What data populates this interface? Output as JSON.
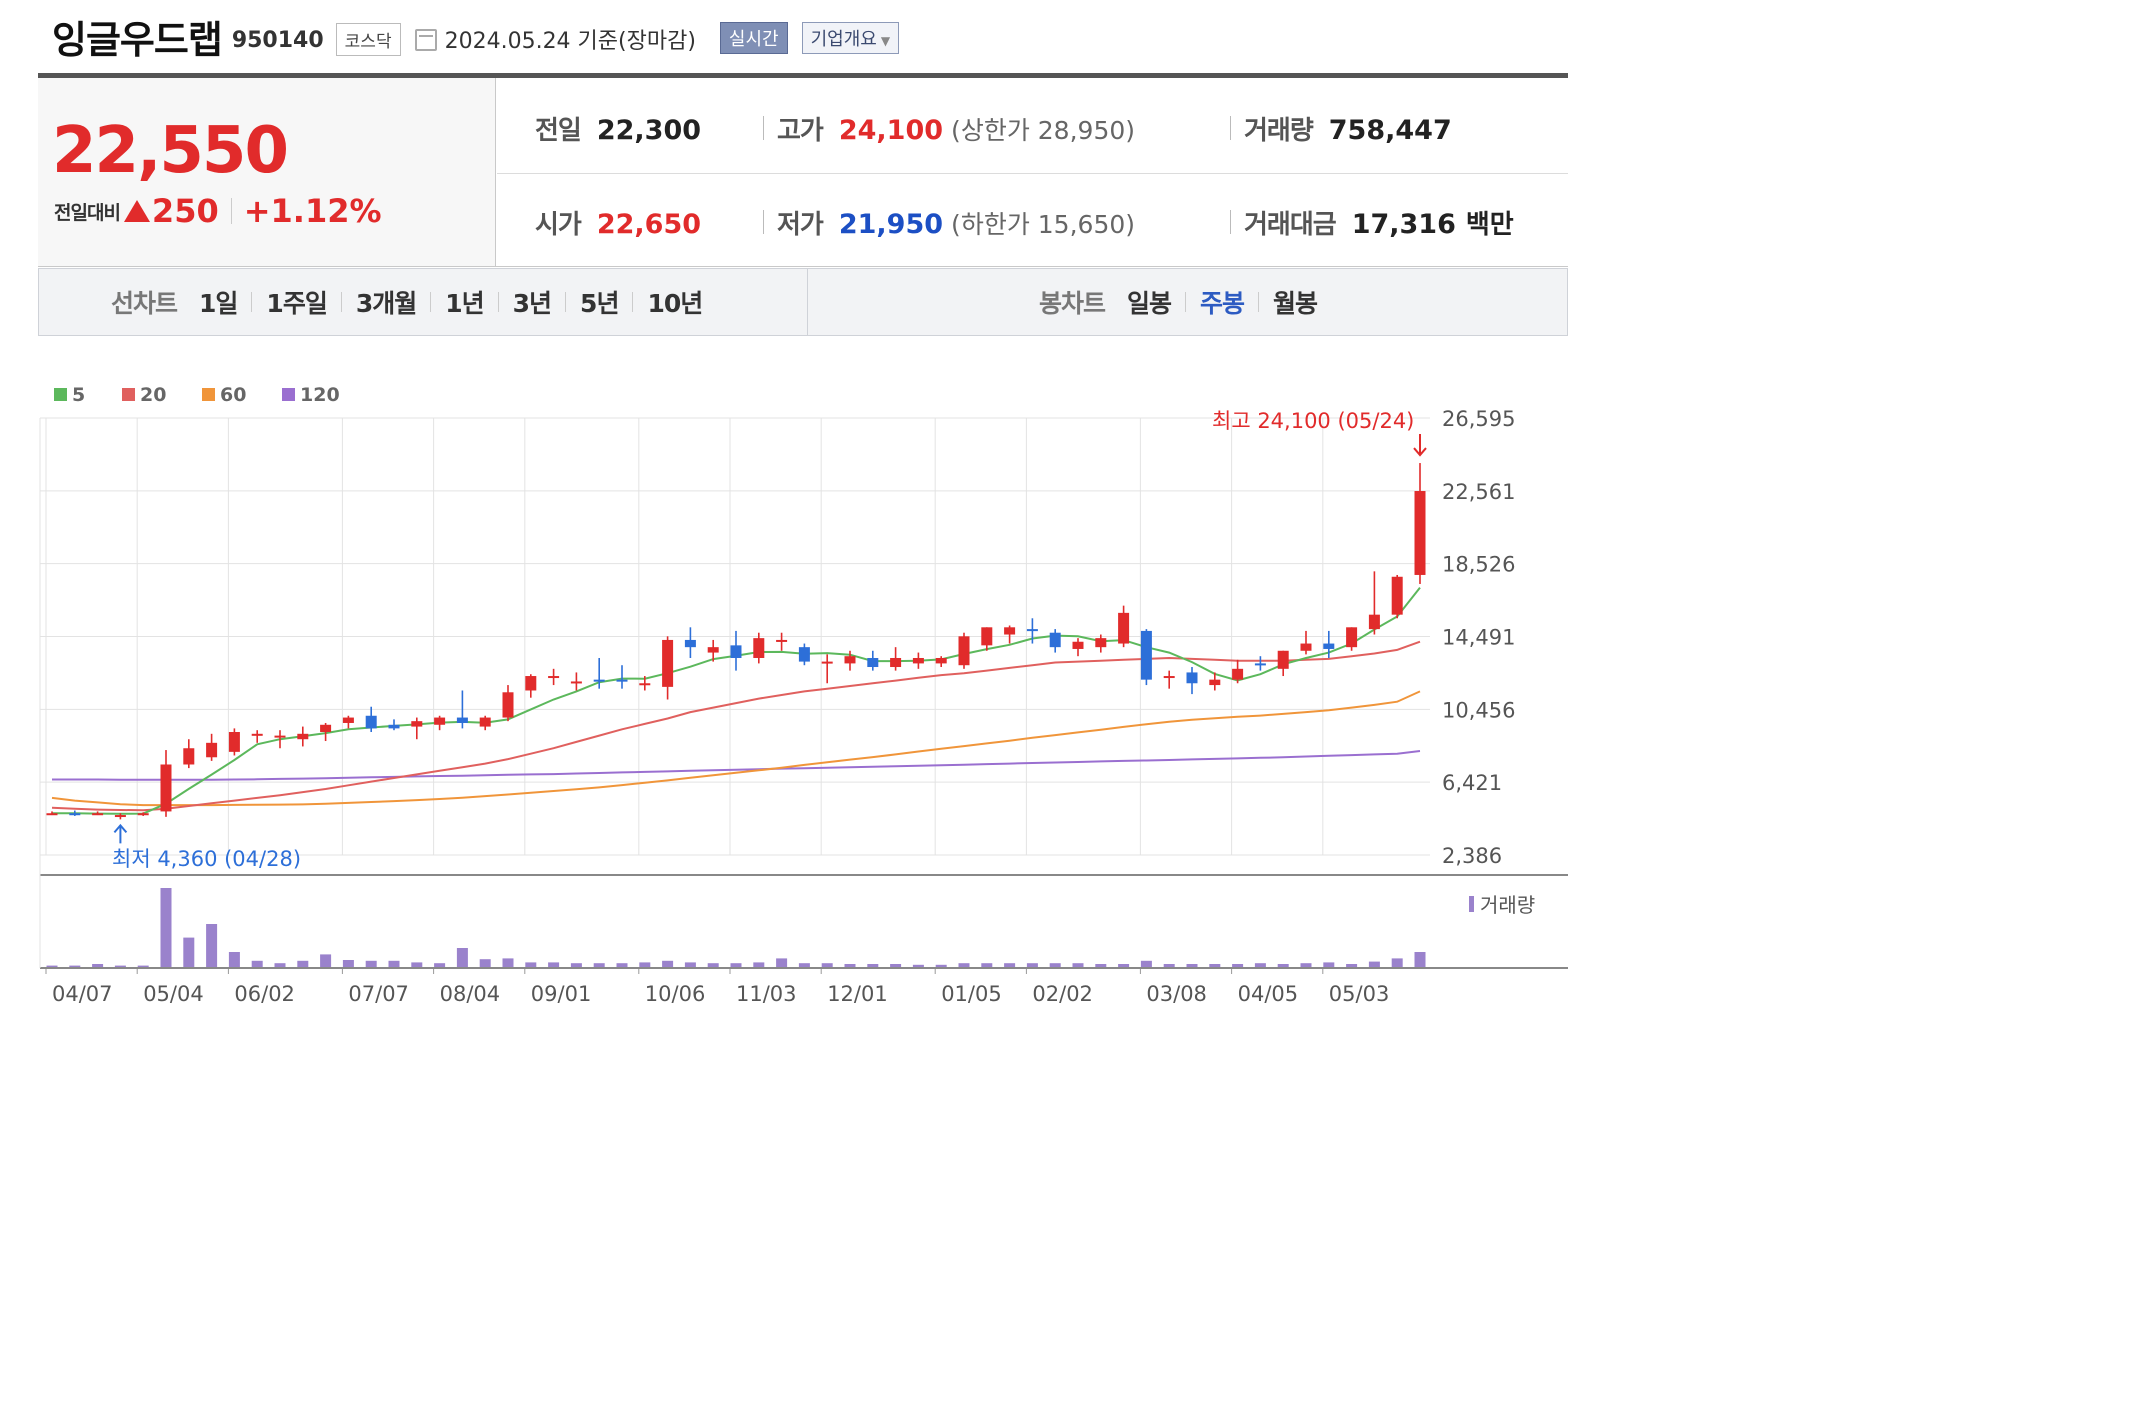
{
  "header": {
    "name": "잉글우드랩",
    "code": "950140",
    "market": "코스닥",
    "date": "2024.05.24 기준(장마감)",
    "realtime_button": "실시간",
    "corp_button": "기업개요"
  },
  "quote": {
    "price": "22,550",
    "change_label": "전일대비",
    "change": "250",
    "change_pct": "+1.12%",
    "prev_close": {
      "label": "전일",
      "value": "22,300"
    },
    "open": {
      "label": "시가",
      "value": "22,650"
    },
    "high": {
      "label": "고가",
      "value": "24,100",
      "limit_label": "상한가",
      "limit_value": "28,950"
    },
    "low": {
      "label": "저가",
      "value": "21,950",
      "limit_label": "하한가",
      "limit_value": "15,650"
    },
    "volume": {
      "label": "거래량",
      "value": "758,447"
    },
    "turnover": {
      "label": "거래대금",
      "value": "17,316",
      "unit": "백만"
    }
  },
  "tabs": {
    "line_title": "선차트",
    "line_tabs": [
      "1일",
      "1주일",
      "3개월",
      "1년",
      "3년",
      "5년",
      "10년"
    ],
    "candle_title": "봉차트",
    "candle_tabs": [
      "일봉",
      "주봉",
      "월봉"
    ],
    "candle_active": "주봉"
  },
  "colors": {
    "up": "#e12b2b",
    "down": "#2d6fd8",
    "ma5": "#5cb85c",
    "ma20": "#e0605e",
    "ma60": "#f0953a",
    "ma120": "#9a6fd0",
    "volume": "#9a82cc",
    "grid": "#e3e3e3"
  },
  "chart_data": {
    "type": "candlestick",
    "period": "weekly",
    "y_ticks": [
      "26,595",
      "22,561",
      "18,526",
      "14,491",
      "10,456",
      "6,421",
      "2,386"
    ],
    "ylim": [
      2386,
      26595
    ],
    "x_ticks": [
      "04/07",
      "05/04",
      "06/02",
      "07/07",
      "08/04",
      "09/01",
      "10/06",
      "11/03",
      "12/01",
      "01/05",
      "02/02",
      "03/08",
      "04/05",
      "05/03"
    ],
    "legend": [
      {
        "name": "5",
        "color": "#5cb85c"
      },
      {
        "name": "20",
        "color": "#e0605e"
      },
      {
        "name": "60",
        "color": "#f0953a"
      },
      {
        "name": "120",
        "color": "#9a6fd0"
      }
    ],
    "volume_label": "거래량",
    "max_annotation": "최고 24,100 (05/24)",
    "min_annotation": "최저 4,360 (04/28)",
    "candles": [
      {
        "o": 4700,
        "h": 4800,
        "l": 4600,
        "c": 4700
      },
      {
        "o": 4700,
        "h": 4850,
        "l": 4550,
        "c": 4650
      },
      {
        "o": 4700,
        "h": 4800,
        "l": 4600,
        "c": 4700
      },
      {
        "o": 4600,
        "h": 4700,
        "l": 4360,
        "c": 4600
      },
      {
        "o": 4650,
        "h": 4750,
        "l": 4550,
        "c": 4700
      },
      {
        "o": 4800,
        "h": 8200,
        "l": 4500,
        "c": 7400
      },
      {
        "o": 7400,
        "h": 8800,
        "l": 7200,
        "c": 8300
      },
      {
        "o": 7800,
        "h": 9100,
        "l": 7600,
        "c": 8600
      },
      {
        "o": 8100,
        "h": 9400,
        "l": 7900,
        "c": 9200
      },
      {
        "o": 9100,
        "h": 9300,
        "l": 8600,
        "c": 9100
      },
      {
        "o": 9000,
        "h": 9300,
        "l": 8300,
        "c": 9000
      },
      {
        "o": 8800,
        "h": 9500,
        "l": 8400,
        "c": 9100
      },
      {
        "o": 9200,
        "h": 9700,
        "l": 8700,
        "c": 9600
      },
      {
        "o": 9700,
        "h": 10100,
        "l": 9400,
        "c": 10000
      },
      {
        "o": 10100,
        "h": 10600,
        "l": 9200,
        "c": 9400
      },
      {
        "o": 9600,
        "h": 9900,
        "l": 9300,
        "c": 9400
      },
      {
        "o": 9500,
        "h": 10000,
        "l": 8800,
        "c": 9800
      },
      {
        "o": 9600,
        "h": 10100,
        "l": 9300,
        "c": 10000
      },
      {
        "o": 10000,
        "h": 11500,
        "l": 9400,
        "c": 9700
      },
      {
        "o": 9500,
        "h": 10100,
        "l": 9300,
        "c": 10000
      },
      {
        "o": 10000,
        "h": 11800,
        "l": 9800,
        "c": 11400
      },
      {
        "o": 11500,
        "h": 12400,
        "l": 11100,
        "c": 12300
      },
      {
        "o": 12200,
        "h": 12700,
        "l": 11800,
        "c": 12300
      },
      {
        "o": 12000,
        "h": 12500,
        "l": 11500,
        "c": 12000
      },
      {
        "o": 12100,
        "h": 13300,
        "l": 11600,
        "c": 12000
      },
      {
        "o": 12100,
        "h": 12900,
        "l": 11600,
        "c": 12000
      },
      {
        "o": 11900,
        "h": 12300,
        "l": 11500,
        "c": 11900
      },
      {
        "o": 11700,
        "h": 14500,
        "l": 11000,
        "c": 14300
      },
      {
        "o": 14300,
        "h": 15000,
        "l": 13300,
        "c": 13900
      },
      {
        "o": 13600,
        "h": 14300,
        "l": 13100,
        "c": 13900
      },
      {
        "o": 14000,
        "h": 14800,
        "l": 12600,
        "c": 13300
      },
      {
        "o": 13300,
        "h": 14700,
        "l": 13000,
        "c": 14400
      },
      {
        "o": 14300,
        "h": 14700,
        "l": 13700,
        "c": 14300
      },
      {
        "o": 13900,
        "h": 14100,
        "l": 12900,
        "c": 13100
      },
      {
        "o": 13100,
        "h": 13500,
        "l": 11900,
        "c": 13100
      },
      {
        "o": 13000,
        "h": 13700,
        "l": 12600,
        "c": 13400
      },
      {
        "o": 13300,
        "h": 13700,
        "l": 12600,
        "c": 12800
      },
      {
        "o": 12800,
        "h": 13900,
        "l": 12600,
        "c": 13300
      },
      {
        "o": 13000,
        "h": 13600,
        "l": 12700,
        "c": 13300
      },
      {
        "o": 13000,
        "h": 13400,
        "l": 12800,
        "c": 13300
      },
      {
        "o": 12900,
        "h": 14700,
        "l": 12700,
        "c": 14500
      },
      {
        "o": 14000,
        "h": 15000,
        "l": 13700,
        "c": 15000
      },
      {
        "o": 14600,
        "h": 15100,
        "l": 14100,
        "c": 15000
      },
      {
        "o": 14900,
        "h": 15500,
        "l": 14100,
        "c": 14800
      },
      {
        "o": 14700,
        "h": 14900,
        "l": 13600,
        "c": 13900
      },
      {
        "o": 13800,
        "h": 14400,
        "l": 13400,
        "c": 14200
      },
      {
        "o": 13900,
        "h": 14600,
        "l": 13600,
        "c": 14400
      },
      {
        "o": 14100,
        "h": 16200,
        "l": 13900,
        "c": 15800
      },
      {
        "o": 14800,
        "h": 14900,
        "l": 11800,
        "c": 12100
      },
      {
        "o": 12200,
        "h": 12600,
        "l": 11600,
        "c": 12300
      },
      {
        "o": 12500,
        "h": 12800,
        "l": 11300,
        "c": 11900
      },
      {
        "o": 11800,
        "h": 12500,
        "l": 11500,
        "c": 12100
      },
      {
        "o": 12100,
        "h": 13200,
        "l": 11900,
        "c": 12700
      },
      {
        "o": 13000,
        "h": 13400,
        "l": 12600,
        "c": 12900
      },
      {
        "o": 12700,
        "h": 13700,
        "l": 12300,
        "c": 13700
      },
      {
        "o": 13700,
        "h": 14800,
        "l": 13500,
        "c": 14100
      },
      {
        "o": 14100,
        "h": 14800,
        "l": 13300,
        "c": 13800
      },
      {
        "o": 13900,
        "h": 15000,
        "l": 13700,
        "c": 15000
      },
      {
        "o": 14900,
        "h": 18100,
        "l": 14600,
        "c": 15700
      },
      {
        "o": 15700,
        "h": 17900,
        "l": 15500,
        "c": 17800
      },
      {
        "o": 17900,
        "h": 24100,
        "l": 17400,
        "c": 22550
      }
    ],
    "ma5": [
      4700,
      4700,
      4680,
      4670,
      4680,
      5230,
      6050,
      6840,
      7650,
      8520,
      8800,
      8960,
      9140,
      9350,
      9450,
      9540,
      9620,
      9720,
      9760,
      9710,
      9900,
      10450,
      11000,
      11450,
      11960,
      12160,
      12150,
      12460,
      12820,
      13240,
      13420,
      13630,
      13640,
      13540,
      13570,
      13480,
      13130,
      13130,
      13150,
      13220,
      13520,
      13790,
      14030,
      14380,
      14540,
      14500,
      14230,
      14290,
      13900,
      13600,
      13070,
      12420,
      12060,
      12400,
      12950,
      13300,
      13600,
      14100,
      14880,
      15600,
      17200
    ],
    "ma20": [
      5000,
      4950,
      4900,
      4880,
      4870,
      4950,
      5100,
      5250,
      5400,
      5550,
      5700,
      5870,
      6040,
      6250,
      6450,
      6650,
      6850,
      7050,
      7250,
      7450,
      7700,
      8000,
      8300,
      8650,
      9000,
      9350,
      9650,
      9950,
      10300,
      10550,
      10800,
      11050,
      11250,
      11450,
      11600,
      11750,
      11900,
      12050,
      12200,
      12350,
      12450,
      12600,
      12750,
      12900,
      13050,
      13100,
      13150,
      13200,
      13250,
      13300,
      13250,
      13200,
      13150,
      13150,
      13150,
      13200,
      13250,
      13400,
      13550,
      13750,
      14200
    ],
    "ma60": [
      5550,
      5400,
      5300,
      5200,
      5150,
      5150,
      5150,
      5150,
      5160,
      5170,
      5180,
      5190,
      5230,
      5270,
      5320,
      5370,
      5430,
      5490,
      5560,
      5650,
      5740,
      5830,
      5930,
      6030,
      6130,
      6260,
      6390,
      6520,
      6660,
      6800,
      6940,
      7080,
      7220,
      7380,
      7520,
      7670,
      7810,
      7960,
      8120,
      8270,
      8420,
      8570,
      8720,
      8880,
      9030,
      9180,
      9330,
      9480,
      9630,
      9770,
      9880,
      9960,
      10040,
      10110,
      10200,
      10300,
      10410,
      10550,
      10700,
      10880,
      11450
    ],
    "ma120": [
      6570,
      6570,
      6570,
      6560,
      6560,
      6550,
      6550,
      6560,
      6570,
      6580,
      6600,
      6620,
      6640,
      6660,
      6690,
      6710,
      6740,
      6760,
      6780,
      6800,
      6830,
      6850,
      6870,
      6900,
      6930,
      6960,
      6990,
      7020,
      7050,
      7080,
      7110,
      7140,
      7170,
      7190,
      7220,
      7250,
      7280,
      7300,
      7330,
      7360,
      7390,
      7420,
      7450,
      7480,
      7510,
      7540,
      7570,
      7600,
      7620,
      7650,
      7680,
      7710,
      7740,
      7770,
      7800,
      7840,
      7880,
      7920,
      7960,
      8000,
      8150
    ],
    "volume": [
      3,
      3,
      5,
      3,
      3,
      100,
      38,
      55,
      20,
      9,
      6,
      9,
      17,
      10,
      9,
      9,
      7,
      6,
      25,
      11,
      12,
      7,
      7,
      6,
      6,
      6,
      7,
      9,
      7,
      6,
      6,
      7,
      12,
      6,
      6,
      5,
      5,
      5,
      4,
      4,
      6,
      6,
      6,
      6,
      6,
      6,
      5,
      5,
      9,
      5,
      5,
      5,
      5,
      6,
      5,
      6,
      7,
      5,
      8,
      12,
      20
    ]
  }
}
